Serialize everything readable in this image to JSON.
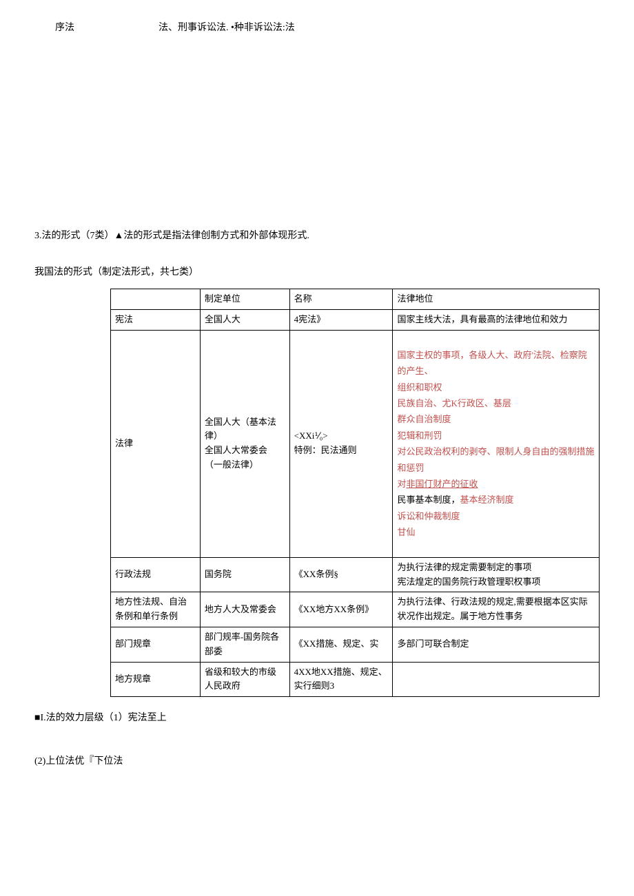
{
  "header": {
    "left": "序法",
    "right": "法、刑事诉讼法. •种非诉讼法:法"
  },
  "section3": {
    "title": "3.法的形式（7类）▲法的形式是指法律创制方式和外部体现形式.",
    "subtitle": "我国法的形式（制定法形式，共七类）"
  },
  "table": {
    "headers": {
      "col1": "",
      "col2": "制定单位",
      "col3": "名称",
      "col4": "法律地位"
    },
    "rows": [
      {
        "c1": "宪法",
        "c2": "全国人大",
        "c3": "4宪法》",
        "c4": "国家主线大法，具有最高的法律地位和效力"
      },
      {
        "c1": "法律",
        "c2": "全国人大（基本法律）\n全国人大常委会（一般法律）",
        "c3_line1": "<XXi⅟₀>",
        "c3_line2": "特例：民法通则",
        "c4_lines": {
          "l1": "国家主权的事项，各级人大、政府'法院、检察院的产生、",
          "l2": "组织和职权",
          "l3": "民族自治、尤K行政区、基层",
          "l4": "群众自治制度",
          "l5": "犯辑和刑罚",
          "l6": "对公民政治权利的剥夺、限制人身自由的强制措施和惩罚",
          "l7a": "对",
          "l7b": "非国仃财产的征收",
          "l8a": "民事基本制度，",
          "l8b": "基本经济制度",
          "l9": "诉讼和仲裁制度",
          "l10": "甘仙"
        }
      },
      {
        "c1": "行政法规",
        "c2": "国务院",
        "c3": "《XX条例§",
        "c4": "为执行法律的规定需要制定的事项\n宪法煌定的国务院行政管理职权事项"
      },
      {
        "c1": "地方性法规、自治条例和单行条例",
        "c2": "地方人大及常委会",
        "c3": "《XX地方XX条例》",
        "c4": "为执行法律、行政法规的规定,需要根据本区实际状况作出规定。属于地方性事务"
      },
      {
        "c1": "部门规章",
        "c2": "部门规率-国务院各部委",
        "c3": "《XX措施、规定、实",
        "c4": "多部门可联合制定"
      },
      {
        "c1": "地方规章",
        "c2": "省级和较大的市级人民政府",
        "c3": "4XX地XX措施、规定、实行细则3",
        "c4": ""
      }
    ]
  },
  "footer": {
    "line1": "■I.法的效力层级（1）宪法至上",
    "line2": "(2)上位法优『下位法"
  }
}
